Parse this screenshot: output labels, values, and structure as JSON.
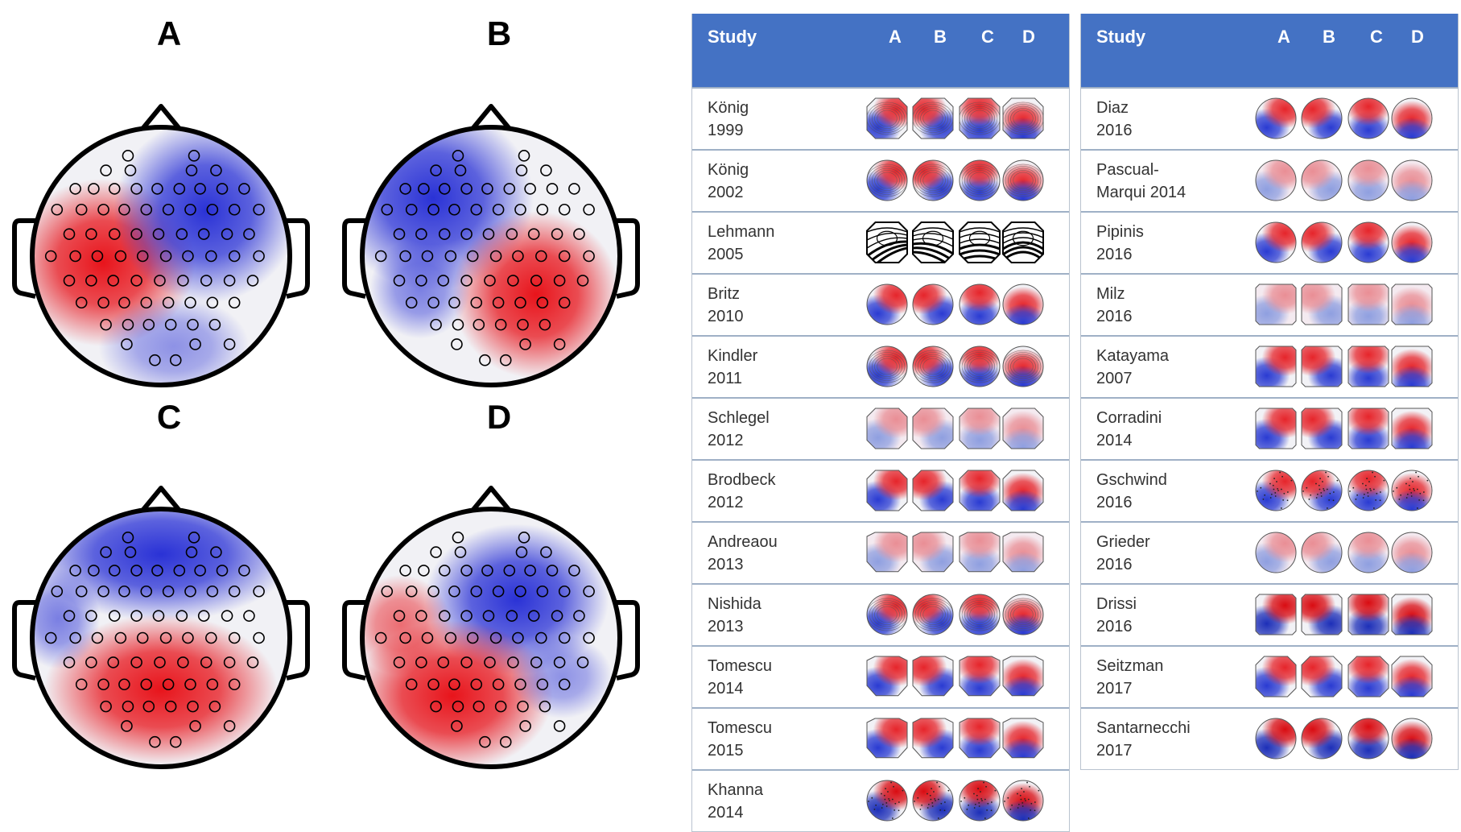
{
  "big_maps": [
    {
      "letter": "A",
      "pattern": "diagonal-left-right",
      "colors": {
        "positive": "#e8141b",
        "negative": "#2a32d6"
      }
    },
    {
      "letter": "B",
      "pattern": "diagonal-right-left",
      "colors": {
        "positive": "#e8141b",
        "negative": "#2a32d6"
      }
    },
    {
      "letter": "C",
      "pattern": "front-back",
      "colors": {
        "positive": "#e8141b",
        "negative": "#2a32d6"
      }
    },
    {
      "letter": "D",
      "pattern": "front-back-center",
      "colors": {
        "positive": "#e8141b",
        "negative": "#2a32d6"
      }
    }
  ],
  "table_left": {
    "header": {
      "study": "Study",
      "cols": [
        "A",
        "B",
        "C",
        "D"
      ],
      "background": "#4472c4"
    },
    "rows": [
      {
        "study": "König\n1999",
        "style": "octagon-contour"
      },
      {
        "study": "König\n2002",
        "style": "circle-contour"
      },
      {
        "study": "Lehmann\n2005",
        "style": "octagon-bw"
      },
      {
        "study": "Britz\n2010",
        "style": "circle-smooth"
      },
      {
        "study": "Kindler\n2011",
        "style": "circle-contour"
      },
      {
        "study": "Schlegel\n2012",
        "style": "octagon-pale"
      },
      {
        "study": "Brodbeck\n2012",
        "style": "hexagon-smooth"
      },
      {
        "study": "Andreaou\n2013",
        "style": "shield-pale"
      },
      {
        "study": "Nishida\n2013",
        "style": "circle-contour"
      },
      {
        "study": "Tomescu\n2014",
        "style": "shield-smooth"
      },
      {
        "study": "Tomescu\n2015",
        "style": "shield-smooth"
      },
      {
        "study": "Khanna\n2014",
        "style": "circle-dark"
      }
    ]
  },
  "table_right": {
    "header": {
      "study": "Study",
      "cols": [
        "A",
        "B",
        "C",
        "D"
      ],
      "background": "#4472c4"
    },
    "rows": [
      {
        "study": "Diaz\n2016",
        "style": "circle-smooth"
      },
      {
        "study": "Pascual-\nMarqui 2014",
        "style": "circle-pale"
      },
      {
        "study": "Pipinis\n2016",
        "style": "circle-smooth"
      },
      {
        "study": "Milz\n2016",
        "style": "square-pale"
      },
      {
        "study": "Katayama\n2007",
        "style": "square-smooth"
      },
      {
        "study": "Corradini\n2014",
        "style": "square-smooth"
      },
      {
        "study": "Gschwind\n2016",
        "style": "circle-dotted"
      },
      {
        "study": "Grieder\n2016",
        "style": "circle-pale"
      },
      {
        "study": "Drissi\n2016",
        "style": "square-strong"
      },
      {
        "study": "Seitzman\n2017",
        "style": "octagon-smooth"
      },
      {
        "study": "Santarnecchi\n2017",
        "style": "circle-strong"
      }
    ]
  }
}
